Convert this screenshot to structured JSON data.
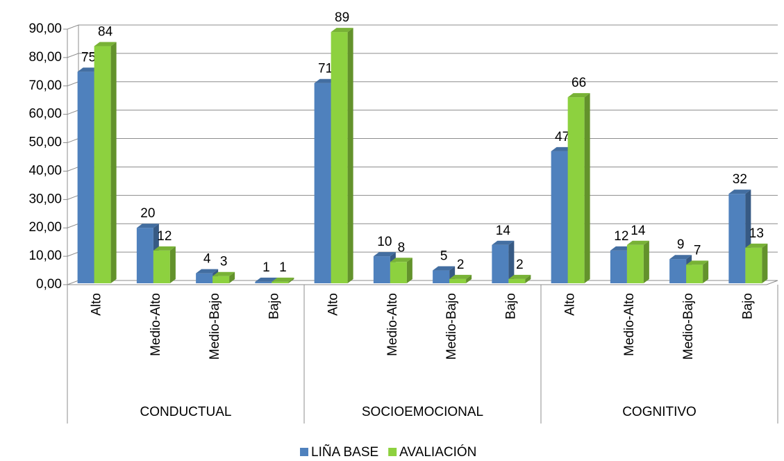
{
  "chart_data": {
    "type": "bar3d",
    "groups": [
      {
        "label": "CONDUCTUAL",
        "categories": [
          "Alto",
          "Medio-Alto",
          "Medio-Bajo",
          "Bajo"
        ]
      },
      {
        "label": "SOCIOEMOCIONAL",
        "categories": [
          "Alto",
          "Medio-Alto",
          "Medio-Bajo",
          "Bajo"
        ]
      },
      {
        "label": "COGNITIVO",
        "categories": [
          "Alto",
          "Medio-Alto",
          "Medio-Bajo",
          "Bajo"
        ]
      }
    ],
    "series": [
      {
        "name": "LIÑA BASE",
        "color": "#4f81bd",
        "values": [
          75,
          20,
          4,
          1,
          71,
          10,
          5,
          14,
          47,
          12,
          9,
          32
        ]
      },
      {
        "name": "AVALIACIÓN",
        "color": "#8dd13f",
        "values": [
          84,
          12,
          3,
          1,
          89,
          8,
          2,
          2,
          66,
          14,
          7,
          13
        ]
      }
    ],
    "ylim": [
      0,
      90
    ],
    "yticks": [
      {
        "value": 0,
        "label": "0,00"
      },
      {
        "value": 10,
        "label": "10,00"
      },
      {
        "value": 20,
        "label": "20,00"
      },
      {
        "value": 30,
        "label": "30,00"
      },
      {
        "value": 40,
        "label": "40,00"
      },
      {
        "value": 50,
        "label": "50,00"
      },
      {
        "value": 60,
        "label": "60,00"
      },
      {
        "value": 70,
        "label": "70,00"
      },
      {
        "value": 80,
        "label": "80,00"
      },
      {
        "value": 90,
        "label": "90,00"
      }
    ],
    "grid": true,
    "legend": "bottom"
  }
}
